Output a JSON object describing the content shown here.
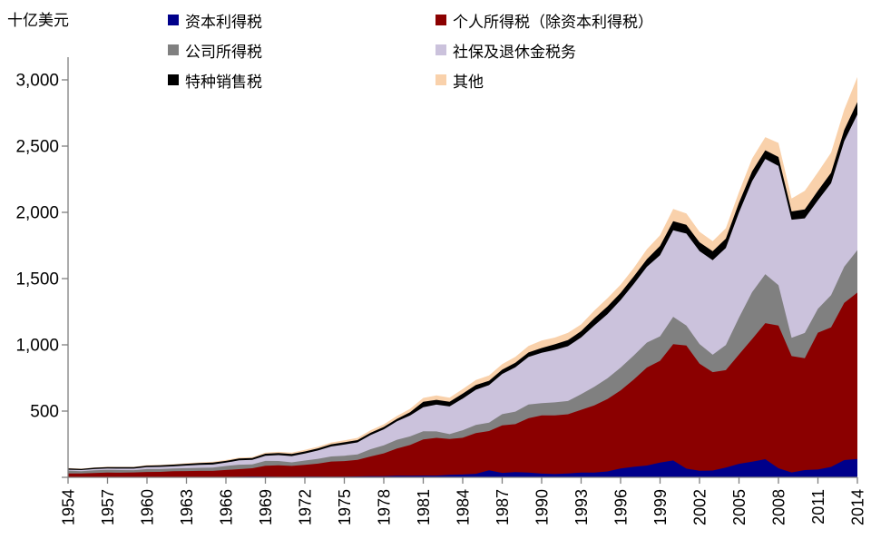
{
  "unit_label": "十亿美元",
  "colors": {
    "background": "#FFFFFF",
    "axis": "#7F7F7F",
    "tick_text": "#000000"
  },
  "chart_data": {
    "type": "area",
    "stacked": true,
    "title": "",
    "ylabel": "十亿美元",
    "xlabel": "",
    "grid": false,
    "legend_position": "top",
    "ylim": [
      0,
      3000
    ],
    "y_tick_values": [
      500,
      1000,
      1500,
      2000,
      2500,
      3000
    ],
    "y_tick_labels": [
      "500",
      "1,000",
      "1,500",
      "2,000",
      "2,500",
      "3,000"
    ],
    "x_tick_interval": 3,
    "x_tick_labels": [
      "1954",
      "1957",
      "1960",
      "1963",
      "1966",
      "1969",
      "1972",
      "1975",
      "1978",
      "1981",
      "1984",
      "1987",
      "1990",
      "1993",
      "1996",
      "1999",
      "2002",
      "2005",
      "2008",
      "2011",
      "2014"
    ],
    "x": [
      1954,
      1955,
      1956,
      1957,
      1958,
      1959,
      1960,
      1961,
      1962,
      1963,
      1964,
      1965,
      1966,
      1967,
      1968,
      1969,
      1970,
      1971,
      1972,
      1973,
      1974,
      1975,
      1976,
      1977,
      1978,
      1979,
      1980,
      1981,
      1982,
      1983,
      1984,
      1985,
      1986,
      1987,
      1988,
      1989,
      1990,
      1991,
      1992,
      1993,
      1994,
      1995,
      1996,
      1997,
      1998,
      1999,
      2000,
      2001,
      2002,
      2003,
      2004,
      2005,
      2006,
      2007,
      2008,
      2009,
      2010,
      2011,
      2012,
      2013,
      2014
    ],
    "series": [
      {
        "name": "资本利得税",
        "color": "#00008B",
        "values": [
          1,
          1.5,
          1.6,
          1.3,
          1.4,
          1.9,
          1.7,
          2.5,
          1.9,
          2.1,
          2.5,
          3,
          2.9,
          4.1,
          5.9,
          5.3,
          3.2,
          4.4,
          5.7,
          5.4,
          4.3,
          4.5,
          6.6,
          8.1,
          9.1,
          11.8,
          12.5,
          12.9,
          12.9,
          18.7,
          21.5,
          26.5,
          52.9,
          33.7,
          38.9,
          35.3,
          27.8,
          24.9,
          29,
          36.1,
          36.2,
          44.3,
          66.4,
          79.3,
          89.1,
          111.8,
          127.3,
          65.7,
          49.1,
          51.3,
          73.2,
          102.2,
          117.8,
          137.1,
          68.8,
          36.7,
          54.7,
          59.1,
          79,
          130,
          139
        ]
      },
      {
        "name": "个人所得税（除资本利得税）",
        "color": "#8B0000",
        "values": [
          28.5,
          27.2,
          30.6,
          34.3,
          33.3,
          34.8,
          39,
          38.8,
          43.7,
          45.5,
          46.2,
          45.8,
          52.5,
          57.4,
          62.8,
          81.9,
          87.2,
          81.8,
          89,
          97.8,
          114.7,
          117.9,
          125,
          149.5,
          171.9,
          206,
          231.6,
          273,
          284.8,
          270.2,
          276.9,
          308,
          296.1,
          358.9,
          362.3,
          410.4,
          439.1,
          442.9,
          447,
          473.6,
          506.9,
          545.9,
          590,
          658.2,
          739.5,
          767.7,
          877.2,
          928.6,
          809.2,
          742.4,
          735.8,
          825,
          926.1,
          1026.4,
          1076.9,
          878.6,
          843.8,
          1032.4,
          1053.2,
          1186.4,
          1255.6
        ]
      },
      {
        "name": "公司所得税",
        "color": "#808080",
        "values": [
          21.1,
          17.9,
          20.9,
          21.2,
          20.1,
          17.3,
          21.5,
          21,
          20.5,
          21.6,
          23.5,
          25.5,
          30.1,
          34,
          28.7,
          36.7,
          32.8,
          26.8,
          32.2,
          36.2,
          38.6,
          40.6,
          41.4,
          54.9,
          60,
          65.7,
          64.6,
          61.1,
          49.2,
          37,
          56.9,
          61.3,
          63.1,
          83.9,
          94.5,
          103.3,
          93.5,
          98.1,
          100.3,
          117.5,
          140.4,
          157,
          171.8,
          182.3,
          188.7,
          184.7,
          207.3,
          151.1,
          148,
          131.8,
          189.4,
          278.3,
          353.9,
          370.2,
          304.3,
          138.2,
          191.4,
          181.1,
          242.3,
          273.5,
          320.7
        ]
      },
      {
        "name": "社保及退休金税务",
        "color": "#CBC2DC",
        "values": [
          7.2,
          7.9,
          9.3,
          10,
          11.2,
          11.7,
          14.7,
          16.4,
          17,
          19.8,
          22,
          22.2,
          25.5,
          32.6,
          33.9,
          39,
          44.4,
          47.3,
          52.6,
          63.1,
          75.1,
          84.5,
          90.8,
          106.5,
          121,
          138.9,
          157.8,
          182.7,
          201.5,
          209,
          239.4,
          265.2,
          283.9,
          303.3,
          334.3,
          359.4,
          380,
          396,
          413.7,
          428.3,
          461.5,
          484.5,
          509.4,
          539.4,
          571.8,
          611.8,
          652.9,
          694,
          700.8,
          713,
          733.4,
          794.1,
          837.8,
          869.6,
          900.2,
          890.9,
          864.8,
          818.8,
          845.3,
          947.8,
          1023.5
        ]
      },
      {
        "name": "特种销售税",
        "color": "#000000",
        "values": [
          9.9,
          9.1,
          9.9,
          10.5,
          10.6,
          10.8,
          11.7,
          11.9,
          12.5,
          13.2,
          13.7,
          14.6,
          13.1,
          13.7,
          14.1,
          15.2,
          15.7,
          16.6,
          15.5,
          16.3,
          16.8,
          16.6,
          17,
          17.5,
          18.4,
          18.7,
          24.3,
          40.8,
          36.3,
          35.3,
          37.4,
          36,
          32.9,
          32.5,
          35.2,
          34.4,
          35.3,
          42.4,
          45.6,
          48.1,
          55.2,
          57.5,
          54,
          56.9,
          57.7,
          70.4,
          68.9,
          66.2,
          67,
          67.5,
          69.9,
          73.1,
          74,
          65.1,
          67.3,
          62.5,
          66.9,
          72.4,
          79.1,
          84,
          93.4
        ]
      },
      {
        "name": "其他",
        "color": "#F9D1AB",
        "values": [
          2,
          1.9,
          2.3,
          2.7,
          3,
          2.8,
          3.9,
          3.8,
          4,
          4.4,
          4.8,
          5.8,
          6.7,
          7,
          7.6,
          8.7,
          9.5,
          10.2,
          12.4,
          12,
          13.7,
          15,
          17.3,
          19.1,
          19.3,
          22.1,
          26.3,
          28.7,
          32.9,
          30.4,
          34.3,
          37.1,
          40.2,
          42,
          43.9,
          48.3,
          56.2,
          50.7,
          55.7,
          50.8,
          58.4,
          62.6,
          61.6,
          63.2,
          75,
          81,
          91.7,
          85.6,
          79.1,
          76.5,
          78.4,
          81,
          97.2,
          99.6,
          106.4,
          98.1,
          140.9,
          139.7,
          151.1,
          153.4,
          189
        ]
      }
    ]
  }
}
